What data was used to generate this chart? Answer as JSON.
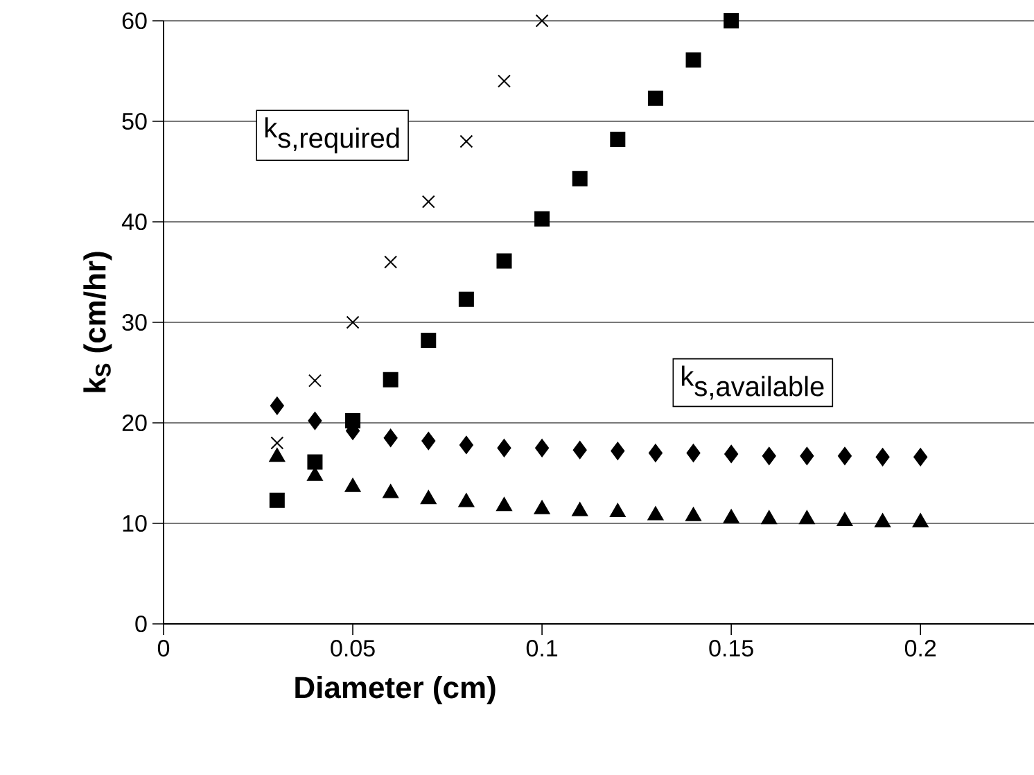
{
  "chart_data": {
    "type": "scatter",
    "xlabel": "Diameter (cm)",
    "ylabel": "k$_{S}$ (cm/hr)",
    "xlim": [
      0,
      0.23
    ],
    "xticks": [
      0,
      0.05,
      0.1,
      0.15,
      0.2
    ],
    "ylim": [
      0,
      60
    ],
    "yticks": [
      0,
      10,
      20,
      30,
      40,
      50,
      60
    ],
    "grid": "y",
    "annotations": [
      "\\textrm{k}_{\\textrm{s,required}}",
      "\\textrm{k}_{\\textrm{s,available}}"
    ],
    "series": [
      {
        "color": "#000000",
        "marker": "cross",
        "x": [
          0.03,
          0.04,
          0.05,
          0.06,
          0.07,
          0.08,
          0.09,
          0.1
        ],
        "values": [
          18,
          24.2,
          30,
          36,
          42,
          48,
          54,
          60
        ]
      },
      {
        "color": "#000000",
        "marker": "square",
        "x": [
          0.03,
          0.04,
          0.05,
          0.06,
          0.07,
          0.08,
          0.09,
          0.1,
          0.11,
          0.12,
          0.13,
          0.14,
          0.15
        ],
        "values": [
          12.3,
          16.1,
          20.2,
          24.3,
          28.2,
          32.3,
          36.1,
          40.3,
          44.3,
          48.2,
          52.3,
          56.1,
          60
        ]
      },
      {
        "color": "#000000",
        "marker": "diamond",
        "x": [
          0.03,
          0.04,
          0.05,
          0.06,
          0.07,
          0.08,
          0.09,
          0.1,
          0.11,
          0.12,
          0.13,
          0.14,
          0.15,
          0.16,
          0.17,
          0.18,
          0.19,
          0.2
        ],
        "values": [
          21.7,
          20.2,
          19.2,
          18.5,
          18.2,
          17.8,
          17.5,
          17.5,
          17.3,
          17.2,
          17.0,
          17.0,
          16.9,
          16.7,
          16.7,
          16.7,
          16.6,
          16.6
        ]
      },
      {
        "color": "#000000",
        "marker": "triangle",
        "x": [
          0.03,
          0.04,
          0.05,
          0.06,
          0.07,
          0.08,
          0.09,
          0.1,
          0.11,
          0.12,
          0.13,
          0.14,
          0.15,
          0.16,
          0.17,
          0.18,
          0.19,
          0.2
        ],
        "values": [
          16.6,
          14.7,
          13.6,
          13.0,
          12.4,
          12.1,
          11.7,
          11.4,
          11.2,
          11.1,
          10.8,
          10.7,
          10.5,
          10.4,
          10.4,
          10.2,
          10.1,
          10.1
        ]
      }
    ]
  }
}
